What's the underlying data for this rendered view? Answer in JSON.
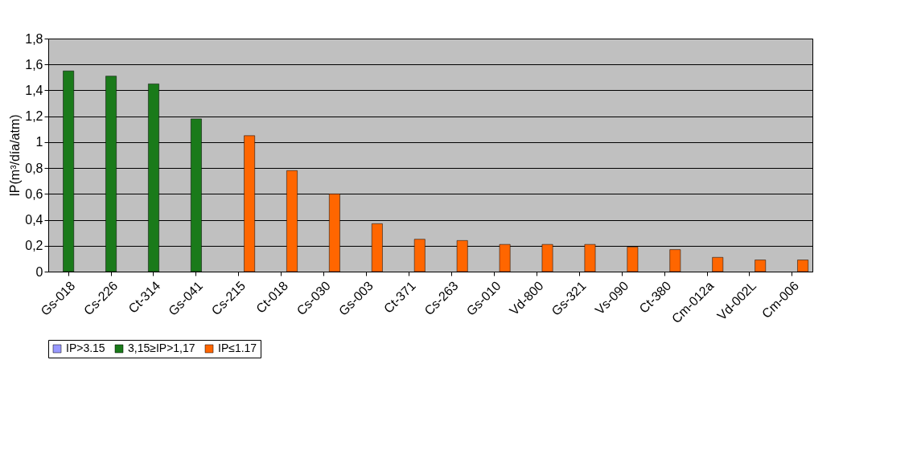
{
  "chart_data": {
    "type": "bar",
    "ylabel": "IP(m³/día/atm)",
    "categories": [
      "Gs-018",
      "Cs-226",
      "Ct-314",
      "Gs-041",
      "Cs-215",
      "Ct-018",
      "Cs-030",
      "Gs-003",
      "Ct-371",
      "Cs-263",
      "Gs-010",
      "Vd-800",
      "Gs-321",
      "Vs-090",
      "Ct-380",
      "Cm-012a",
      "Vd-002L",
      "Cm-006"
    ],
    "series": [
      {
        "name": "IP>3.15",
        "color": "#9999ff",
        "values": [
          null,
          null,
          null,
          null,
          null,
          null,
          null,
          null,
          null,
          null,
          null,
          null,
          null,
          null,
          null,
          null,
          null,
          null
        ]
      },
      {
        "name": "3,15≥IP>1,17",
        "color": "#1a7a1a",
        "values": [
          1.55,
          1.51,
          1.45,
          1.18,
          null,
          null,
          null,
          null,
          null,
          null,
          null,
          null,
          null,
          null,
          null,
          null,
          null,
          null
        ]
      },
      {
        "name": "IP≤1.17",
        "color": "#ff6600",
        "values": [
          null,
          null,
          null,
          null,
          1.05,
          0.78,
          0.6,
          0.37,
          0.25,
          0.24,
          0.21,
          0.21,
          0.21,
          0.19,
          0.17,
          0.11,
          0.09,
          0.09
        ]
      }
    ],
    "ylim": [
      0,
      1.8
    ],
    "yticks": [
      0,
      {
        "value": 0.2,
        "label": "0,2"
      },
      {
        "value": 0.4,
        "label": "0,4"
      },
      {
        "value": 0.6,
        "label": "0,6"
      },
      {
        "value": 0.8,
        "label": "0,8"
      },
      1,
      {
        "value": 1.2,
        "label": "1,2"
      },
      {
        "value": 1.4,
        "label": "1,4"
      },
      {
        "value": 1.6,
        "label": "1,6"
      },
      {
        "value": 1.8,
        "label": "1,8"
      }
    ],
    "grid": "y",
    "legend": "bottom"
  }
}
